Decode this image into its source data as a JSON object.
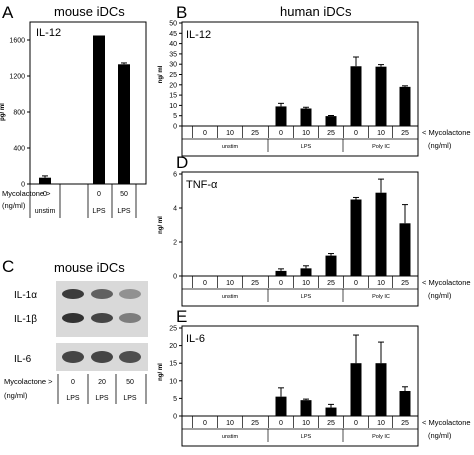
{
  "headings": {
    "a_letter": "A",
    "a_title": "mouse iDCs",
    "b_letter": "B",
    "b_title": "human iDCs",
    "c_letter": "C",
    "c_title": "mouse iDCs",
    "d_letter": "D",
    "e_letter": "E"
  },
  "colors": {
    "bar": "#000000",
    "frame": "#000000",
    "blot_bg": "#d9d9d9",
    "band": "#3a3a3a"
  },
  "chart_data": [
    {
      "id": "A",
      "type": "bar",
      "title": "IL-12",
      "ylabel": "pg/ ml",
      "ylim": [
        0,
        1600
      ],
      "yticks": [
        0,
        400,
        800,
        1200,
        1600
      ],
      "categories": [
        "unstim",
        "LPS",
        "LPS"
      ],
      "doses": [
        "0",
        "0",
        "50"
      ],
      "values": [
        70,
        1650,
        1330
      ],
      "errors": [
        20,
        0,
        15
      ],
      "xaxis_label": "Mycolactone >",
      "xaxis_unit": "(ng/ml)"
    },
    {
      "id": "B",
      "type": "bar",
      "title": "IL-12",
      "ylabel": "ng/ ml",
      "ylim": [
        0,
        50
      ],
      "yticks": [
        0,
        5,
        10,
        15,
        20,
        25,
        30,
        35,
        40,
        45,
        50
      ],
      "doses": [
        "0",
        "10",
        "25",
        "0",
        "10",
        "25",
        "0",
        "10",
        "25"
      ],
      "groups": [
        "unstim",
        "LPS",
        "Poly IC"
      ],
      "values": [
        0.2,
        0.2,
        0.2,
        9.5,
        8.5,
        4.8,
        29,
        28.8,
        19
      ],
      "errors": [
        0,
        0,
        0,
        1.5,
        0.6,
        0.3,
        4.5,
        1,
        0.5
      ],
      "xaxis_label": "< Mycolactone",
      "xaxis_unit": "(ng/ml)"
    },
    {
      "id": "D",
      "type": "bar",
      "title": "TNF-α",
      "ylabel": "ng/ ml",
      "ylim": [
        0,
        6
      ],
      "yticks": [
        0,
        2,
        4,
        6
      ],
      "doses": [
        "0",
        "10",
        "25",
        "0",
        "10",
        "25",
        "0",
        "10",
        "25"
      ],
      "groups": [
        "unstim",
        "LPS",
        "Poly IC"
      ],
      "values": [
        0.02,
        0.02,
        0.02,
        0.3,
        0.45,
        1.2,
        4.5,
        4.9,
        3.1
      ],
      "errors": [
        0,
        0,
        0,
        0.12,
        0.15,
        0.12,
        0.12,
        0.8,
        1.1
      ],
      "xaxis_label": "< Mycolactone",
      "xaxis_unit": "(ng/ml)"
    },
    {
      "id": "E",
      "type": "bar",
      "title": "IL-6",
      "ylabel": "ng/ ml",
      "ylim": [
        0,
        25
      ],
      "yticks": [
        0,
        5,
        10,
        15,
        20,
        25
      ],
      "doses": [
        "0",
        "10",
        "25",
        "0",
        "10",
        "25",
        "0",
        "10",
        "25"
      ],
      "groups": [
        "unstim",
        "LPS",
        "Poly IC"
      ],
      "values": [
        0.05,
        0.05,
        0.05,
        5.5,
        4.5,
        2.4,
        15,
        15,
        7.1
      ],
      "errors": [
        0,
        0,
        0,
        2.5,
        0.3,
        0.9,
        8,
        6,
        1.2
      ],
      "xaxis_label": "< Mycolactone",
      "xaxis_unit": "(ng/ml)"
    }
  ],
  "blot": {
    "rows": [
      "IL-1α",
      "IL-1β",
      "IL-6"
    ],
    "doses": [
      "0",
      "20",
      "50"
    ],
    "groups": [
      "LPS",
      "LPS",
      "LPS"
    ],
    "xaxis_label": "Mycolactone >",
    "xaxis_unit": "(ng/ml)",
    "intensity": [
      [
        0.9,
        0.7,
        0.45
      ],
      [
        0.95,
        0.85,
        0.55
      ],
      [
        0.85,
        0.85,
        0.8
      ]
    ]
  }
}
